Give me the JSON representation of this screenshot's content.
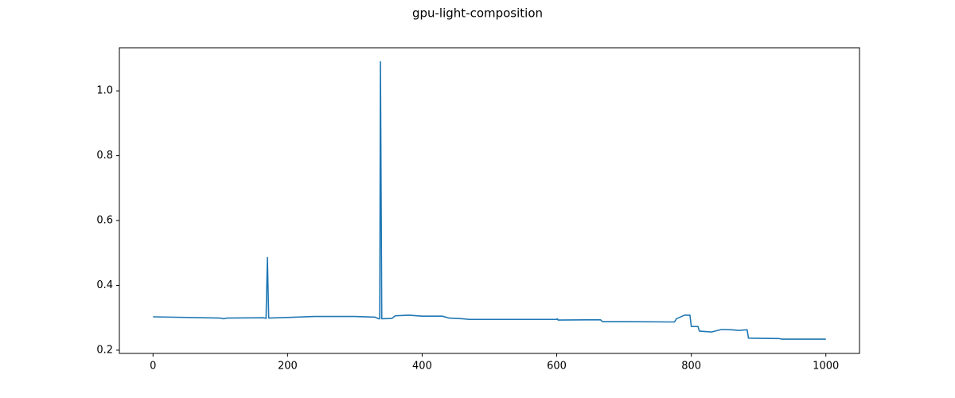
{
  "chart_data": {
    "type": "line",
    "title": "gpu-light-composition",
    "x": [
      0,
      100,
      105,
      110,
      165,
      168,
      170,
      172,
      200,
      240,
      300,
      330,
      335,
      337,
      338,
      340,
      355,
      360,
      380,
      400,
      430,
      440,
      460,
      470,
      600,
      601,
      602,
      665,
      668,
      700,
      775,
      778,
      790,
      798,
      800,
      810,
      812,
      830,
      845,
      860,
      870,
      883,
      885,
      930,
      935,
      1000
    ],
    "values": [
      0.303,
      0.299,
      0.297,
      0.299,
      0.3,
      0.298,
      0.486,
      0.299,
      0.301,
      0.304,
      0.304,
      0.302,
      0.297,
      0.297,
      1.09,
      0.297,
      0.298,
      0.306,
      0.308,
      0.305,
      0.305,
      0.299,
      0.297,
      0.295,
      0.295,
      0.297,
      0.293,
      0.294,
      0.288,
      0.288,
      0.287,
      0.297,
      0.308,
      0.308,
      0.273,
      0.273,
      0.259,
      0.256,
      0.264,
      0.263,
      0.261,
      0.263,
      0.237,
      0.236,
      0.234,
      0.234
    ],
    "color": "#1f77b4",
    "xlim": [
      -50,
      1050
    ],
    "xticks": [
      0,
      200,
      400,
      600,
      800,
      1000
    ],
    "ylim": [
      0.19,
      1.133
    ],
    "yticks": [
      0.2,
      0.4,
      0.6,
      0.8,
      {
        "value": 1,
        "label": "1.0"
      }
    ],
    "grid": false
  }
}
